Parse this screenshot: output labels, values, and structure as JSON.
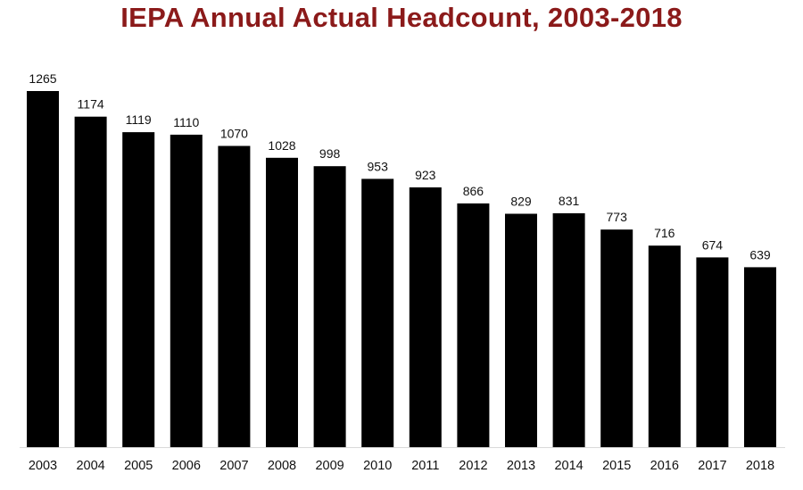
{
  "chart_data": {
    "type": "bar",
    "title": "IEPA Annual Actual Headcount, 2003-2018",
    "xlabel": "",
    "ylabel": "",
    "categories": [
      "2003",
      "2004",
      "2005",
      "2006",
      "2007",
      "2008",
      "2009",
      "2010",
      "2011",
      "2012",
      "2013",
      "2014",
      "2015",
      "2016",
      "2017",
      "2018"
    ],
    "values": [
      1265,
      1174,
      1119,
      1110,
      1070,
      1028,
      998,
      953,
      923,
      866,
      829,
      831,
      773,
      716,
      674,
      639
    ],
    "ylim": [
      0,
      1265
    ],
    "grid": false,
    "legend": "none",
    "bar_color": "#000000",
    "title_color": "#8b1a1a"
  }
}
